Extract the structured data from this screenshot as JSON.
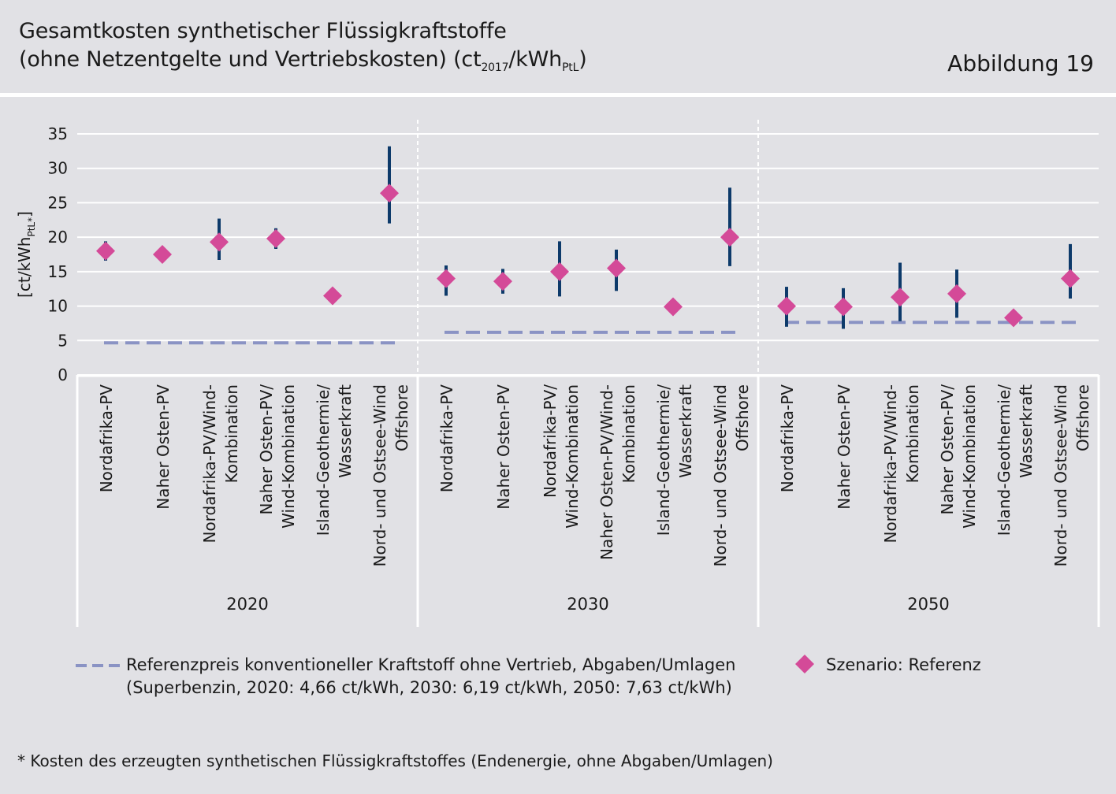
{
  "header": {
    "title_line1": "Gesamtkosten synthetischer Flüssigkraftstoffe",
    "title_line2_a": "(ohne Netzentgelte und Vertriebskosten) (ct",
    "title_line2_sub1": "2017",
    "title_line2_b": "/kWh",
    "title_line2_sub2": "PtL",
    "title_line2_c": ")",
    "figure_label": "Abbildung 19"
  },
  "legend": {
    "reference_line1": "Referenzpreis konventioneller Kraftstoff ohne Vertrieb, Abgaben/Umlagen",
    "reference_line2": "(Superbenzin, 2020: 4,66 ct/kWh,  2030: 6,19 ct/kWh, 2050: 7,63 ct/kWh)",
    "scenario": "Szenario: Referenz"
  },
  "footnote": "* Kosten des erzeugten synthetischen Flüssigkraftstoffes (Endenergie, ohne Abgaben/Umlagen)",
  "colors": {
    "background": "#e1e1e5",
    "marker": "#d44a98",
    "errorbar": "#0d3a6a",
    "reference_line": "#8a93c4",
    "grid": "#ffffff"
  },
  "chart_data": {
    "type": "scatter",
    "title": "Gesamtkosten synthetischer Flüssigkraftstoffe (ohne Netzentgelte und Vertriebskosten) (ct2017/kWhPtL)",
    "ylabel_main": "[ct/kWh",
    "ylabel_sub": "PtL*",
    "ylabel_end": "]",
    "ylim": [
      0,
      35
    ],
    "yticks": [
      "0",
      "5",
      "10",
      "15",
      "20",
      "25",
      "30",
      "35"
    ],
    "grid": true,
    "groups": [
      {
        "year": "2020",
        "reference_price": 4.66,
        "categories": [
          [
            "Nordafrika-PV"
          ],
          [
            "Naher Osten-PV"
          ],
          [
            "Nordafrika-PV/Wind-",
            "Kombination"
          ],
          [
            "Naher Osten-PV/",
            "Wind-Kombination"
          ],
          [
            "Island-Geothermie/",
            "Wasserkraft"
          ],
          [
            "Nord- und Ostsee-Wind",
            "Offshore"
          ]
        ],
        "values": [
          18.0,
          17.5,
          19.3,
          19.8,
          11.5,
          26.4
        ],
        "low": [
          16.6,
          null,
          16.7,
          18.3,
          null,
          22.0
        ],
        "high": [
          19.4,
          null,
          22.7,
          21.3,
          null,
          33.2
        ]
      },
      {
        "year": "2030",
        "reference_price": 6.19,
        "categories": [
          [
            "Nordafrika-PV"
          ],
          [
            "Naher Osten-PV"
          ],
          [
            "Nordafrika-PV/",
            "Wind-Kombination"
          ],
          [
            "Naher Osten-PV/Wind-",
            "Kombination"
          ],
          [
            "Island-Geothermie/",
            "Wasserkraft"
          ],
          [
            "Nord- und Ostsee-Wind",
            "Offshore"
          ]
        ],
        "values": [
          14.0,
          13.6,
          15.0,
          15.5,
          9.9,
          20.0
        ],
        "low": [
          11.5,
          11.8,
          11.4,
          12.2,
          null,
          15.8
        ],
        "high": [
          15.9,
          15.4,
          19.4,
          18.2,
          null,
          27.2
        ]
      },
      {
        "year": "2050",
        "reference_price": 7.63,
        "categories": [
          [
            "Nordafrika-PV"
          ],
          [
            "Naher Osten-PV"
          ],
          [
            "Nordafrika-PV/Wind-",
            "Kombination"
          ],
          [
            "Naher Osten-PV/",
            "Wind-Kombination"
          ],
          [
            "Island-Geothermie/",
            "Wasserkraft"
          ],
          [
            "Nord- und Ostsee-Wind",
            "Offshore"
          ]
        ],
        "values": [
          10.0,
          9.9,
          11.3,
          11.8,
          8.3,
          14.0
        ],
        "low": [
          7.0,
          6.7,
          7.8,
          8.3,
          null,
          11.1
        ],
        "high": [
          12.8,
          12.6,
          16.3,
          15.3,
          null,
          19.0
        ]
      }
    ],
    "legend": [
      "Referenzpreis konventioneller Kraftstoff ohne Vertrieb, Abgaben/Umlagen",
      "Szenario: Referenz"
    ]
  }
}
